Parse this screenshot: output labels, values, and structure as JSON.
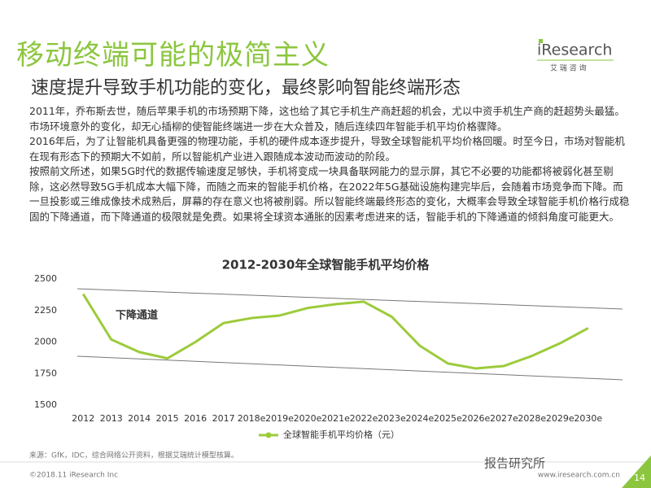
{
  "header": {
    "title": "移动终端可能的极简主义",
    "subtitle": "速度提升导致手机功能的变化，最终影响智能终端形态"
  },
  "logo": {
    "name": "iResearch",
    "sub": "艾 瑞 咨 询"
  },
  "paragraphs": [
    "2011年，乔布斯去世，随后苹果手机的市场预期下降，这也给了其它手机生产商赶超的机会，尤以中资手机生产商的赶超势头最猛。市场环境意外的变化，却无心插柳的使智能终端进一步在大众普及，随后连续四年智能手机平均价格骤降。",
    "2016年后，为了让智能机具备更强的物理功能，手机的硬件成本逐步提升，导致全球智能机平均价格回暖。时至今日，市场对智能机在现有形态下的预期大不如前，所以智能机产业进入跟随成本波动而波动的阶段。",
    "按照前文所述，如果5G时代的数据传输速度足够快，手机将变成一块具备联网能力的显示屏，其它不必要的功能都将被弱化甚至剔除，这必然导致5G手机成本大幅下降，而随之而来的智能手机价格，在2022年5G基础设施构建完毕后，会随着市场竞争而下降。而一旦投影或三维成像技术成熟后，屏幕的存在意义也将被削弱。所以智能终端最终形态的变化，大概率会导致全球智能手机价格行成稳固的下降通道，而下降通道的极限就是免费。如果将全球资本通胀的因素考虑进来的话，智能手机的下降通道的倾斜角度可能更大。"
  ],
  "chart_data": {
    "type": "line",
    "title": "2012-2030年全球智能手机平均价格",
    "categories": [
      "2012",
      "2013",
      "2014",
      "2015",
      "2016",
      "2017",
      "2018e",
      "2019e",
      "2020e",
      "2021e",
      "2022e",
      "2023e",
      "2024e",
      "2025e",
      "2026e",
      "2027e",
      "2028e",
      "2029e",
      "2030e"
    ],
    "series": [
      {
        "name": "全球智能手机平均价格（元）",
        "color": "#9ccb3b",
        "values": [
          2380,
          2020,
          1920,
          1870,
          2000,
          2150,
          2190,
          2210,
          2270,
          2300,
          2320,
          2200,
          1970,
          1830,
          1790,
          1810,
          1890,
          1990,
          2110
        ]
      }
    ],
    "ylim": [
      1500,
      2500
    ],
    "yticks": [
      1500,
      1750,
      2000,
      2250,
      2500
    ],
    "grid": false,
    "annotation": "下降通道"
  },
  "footer": {
    "source": "来源：GfK，IDC，综合网络公开资料，根据艾瑞统计模型核算。",
    "copyright": "©2018.11 iResearch Inc",
    "website": "www.iresearch.com.cn",
    "page": 14,
    "watermark": "报告研究所"
  }
}
